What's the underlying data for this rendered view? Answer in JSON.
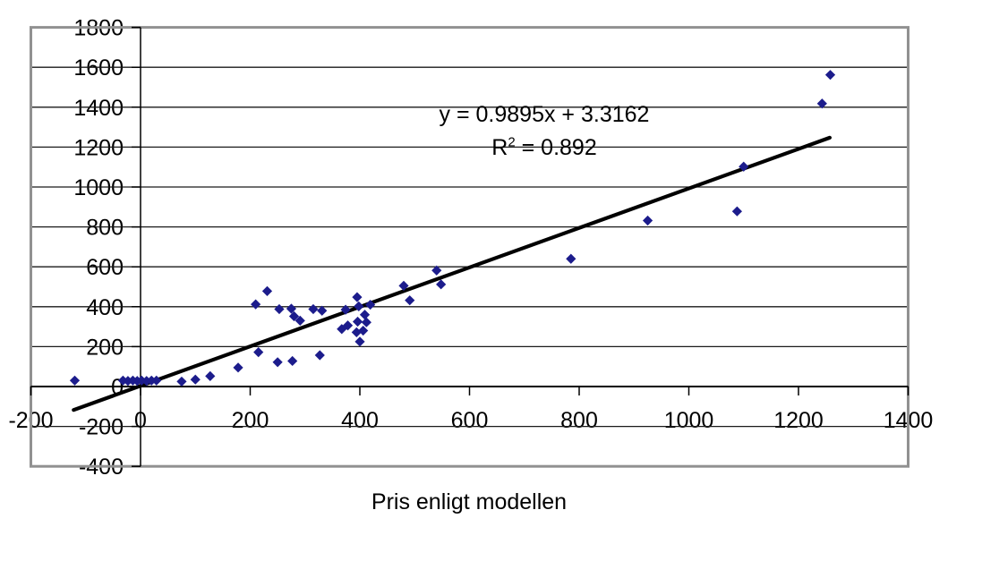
{
  "chart_data": {
    "type": "scatter",
    "title": "",
    "xlabel": "Pris enligt modellen",
    "ylabel": "",
    "equation": {
      "line1": "y = 0.9895x + 3.3162",
      "r2_base": "R",
      "r2_sup": "2",
      "r2_rest": " = 0.892"
    },
    "xlim": [
      -200,
      1400
    ],
    "ylim": [
      -400,
      1800
    ],
    "x_ticks": [
      -200,
      0,
      200,
      400,
      600,
      800,
      1000,
      1200,
      1400
    ],
    "y_ticks": [
      1800,
      1600,
      1400,
      1200,
      1000,
      800,
      600,
      400,
      200,
      0,
      -200,
      -400
    ],
    "grid_on": true,
    "legend": "none",
    "marker_shape": "diamond",
    "marker_color": "#1c1c8c",
    "trendline_color": "#000000",
    "grid_color": "#1a1a1a",
    "axis_color": "#000000",
    "frame_color": "#919191",
    "points": [
      [
        -120,
        30
      ],
      [
        -32,
        30
      ],
      [
        -23,
        28
      ],
      [
        -14,
        30
      ],
      [
        -6,
        28
      ],
      [
        2,
        30
      ],
      [
        11,
        28
      ],
      [
        20,
        30
      ],
      [
        29,
        30
      ],
      [
        75,
        25
      ],
      [
        100,
        35
      ],
      [
        127,
        52
      ],
      [
        178,
        95
      ],
      [
        215,
        172
      ],
      [
        250,
        122
      ],
      [
        277,
        128
      ],
      [
        327,
        157
      ],
      [
        210,
        412
      ],
      [
        231,
        478
      ],
      [
        253,
        388
      ],
      [
        275,
        390
      ],
      [
        280,
        352
      ],
      [
        291,
        330
      ],
      [
        315,
        388
      ],
      [
        331,
        380
      ],
      [
        374,
        385
      ],
      [
        395,
        448
      ],
      [
        398,
        402
      ],
      [
        419,
        410
      ],
      [
        409,
        360
      ],
      [
        396,
        325
      ],
      [
        412,
        322
      ],
      [
        378,
        306
      ],
      [
        367,
        288
      ],
      [
        394,
        272
      ],
      [
        406,
        280
      ],
      [
        400,
        225
      ],
      [
        480,
        505
      ],
      [
        491,
        432
      ],
      [
        540,
        582
      ],
      [
        548,
        512
      ],
      [
        785,
        640
      ],
      [
        925,
        832
      ],
      [
        1088,
        878
      ],
      [
        1100,
        1102
      ],
      [
        1243,
        1418
      ],
      [
        1258,
        1562
      ]
    ],
    "trendline": {
      "slope": 0.9895,
      "intercept": 3.3162,
      "x_start": -122,
      "x_end": 1257
    }
  }
}
